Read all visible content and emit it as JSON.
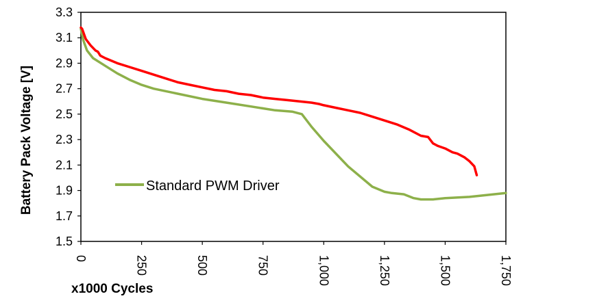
{
  "chart_data": {
    "type": "line",
    "title": "",
    "xlabel": "x1000 Cycles",
    "ylabel": "Battery  Pack Voltage [V]",
    "xlim": [
      0,
      1750
    ],
    "ylim": [
      1.5,
      3.3
    ],
    "x_ticks": [
      "0",
      "250",
      "500",
      "750",
      "1,000",
      "1,250",
      "1,500",
      "1,750"
    ],
    "x_tick_values": [
      0,
      250,
      500,
      750,
      1000,
      1250,
      1500,
      1750
    ],
    "y_ticks": [
      "1.5",
      "1.7",
      "1.9",
      "2.1",
      "2.3",
      "2.5",
      "2.7",
      "2.9",
      "3.1",
      "3.3"
    ],
    "y_tick_values": [
      1.5,
      1.7,
      1.9,
      2.1,
      2.3,
      2.5,
      2.7,
      2.9,
      3.1,
      3.3
    ],
    "grid": false,
    "legend_placement": "lower-left",
    "series": [
      {
        "name": "Standard PWM  Driver",
        "color": "#8db04a",
        "x": [
          0,
          10,
          25,
          50,
          100,
          150,
          200,
          250,
          300,
          400,
          500,
          600,
          700,
          800,
          870,
          910,
          950,
          1000,
          1100,
          1200,
          1250,
          1280,
          1330,
          1370,
          1400,
          1450,
          1500,
          1600,
          1700,
          1750
        ],
        "y": [
          3.17,
          3.08,
          3.0,
          2.94,
          2.88,
          2.82,
          2.77,
          2.73,
          2.7,
          2.66,
          2.62,
          2.59,
          2.56,
          2.53,
          2.52,
          2.5,
          2.4,
          2.29,
          2.09,
          1.93,
          1.89,
          1.88,
          1.87,
          1.84,
          1.83,
          1.83,
          1.84,
          1.85,
          1.87,
          1.88
        ]
      },
      {
        "name": "",
        "color": "#ff0000",
        "x": [
          0,
          5,
          20,
          40,
          60,
          70,
          80,
          100,
          150,
          200,
          250,
          300,
          350,
          400,
          450,
          500,
          550,
          600,
          650,
          700,
          750,
          800,
          850,
          900,
          950,
          980,
          1000,
          1050,
          1100,
          1150,
          1200,
          1250,
          1300,
          1350,
          1400,
          1430,
          1450,
          1470,
          1500,
          1530,
          1550,
          1560,
          1580,
          1600,
          1620,
          1630
        ],
        "y": [
          3.18,
          3.17,
          3.09,
          3.04,
          3.0,
          2.99,
          2.96,
          2.94,
          2.9,
          2.87,
          2.84,
          2.81,
          2.78,
          2.75,
          2.73,
          2.71,
          2.69,
          2.68,
          2.66,
          2.65,
          2.63,
          2.62,
          2.61,
          2.6,
          2.59,
          2.58,
          2.57,
          2.55,
          2.53,
          2.51,
          2.48,
          2.45,
          2.42,
          2.38,
          2.33,
          2.32,
          2.27,
          2.25,
          2.23,
          2.2,
          2.19,
          2.18,
          2.16,
          2.13,
          2.09,
          2.02
        ]
      }
    ]
  }
}
